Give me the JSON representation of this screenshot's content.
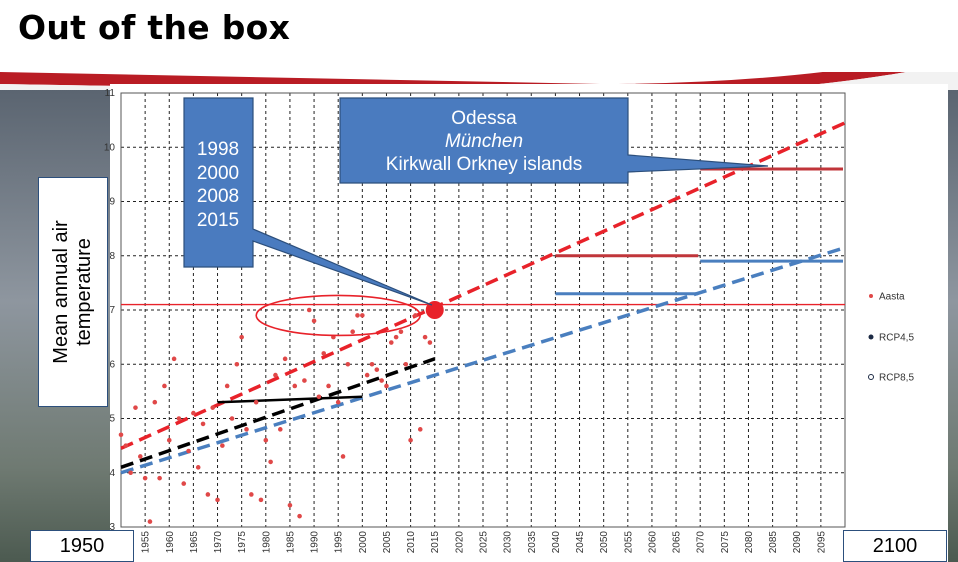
{
  "page": {
    "title": "Out of the box"
  },
  "ylabel": "Mean annual air temperature",
  "year_start_box": "1950",
  "year_end_box": "2100",
  "callout_years": {
    "lines": [
      "1998",
      "2000",
      "2008",
      "2015"
    ]
  },
  "callout_cities": {
    "lines": [
      "Odessa",
      "München",
      "Kirkwall Orkney islands"
    ]
  },
  "colors": {
    "observed": "#e04848",
    "rcp45": "#4a7fbf",
    "rcp85": "#e8222a",
    "trend_hist": "#000000",
    "callout": "#4a7bbf"
  },
  "chart_data": {
    "type": "scatter",
    "xlim": [
      1950,
      2100
    ],
    "ylim": [
      3,
      11
    ],
    "x_ticks": [
      1955,
      1960,
      1965,
      1970,
      1975,
      1980,
      1985,
      1990,
      1995,
      2000,
      2005,
      2010,
      2015,
      2020,
      2025,
      2030,
      2035,
      2040,
      2045,
      2050,
      2055,
      2060,
      2065,
      2070,
      2075,
      2080,
      2085,
      2090,
      2095
    ],
    "y_ticks": [
      3,
      4,
      5,
      6,
      7,
      8,
      9,
      10,
      11
    ],
    "grid": true,
    "legend_position": "right",
    "legend": [
      {
        "key": "observed",
        "label": "Aasta"
      },
      {
        "key": "rcp45",
        "label": "RCP4,5"
      },
      {
        "key": "rcp85",
        "label": "RCP8,5"
      }
    ],
    "observed_points": [
      [
        1950,
        4.7
      ],
      [
        1951,
        4.5
      ],
      [
        1952,
        4.0
      ],
      [
        1953,
        5.2
      ],
      [
        1954,
        4.3
      ],
      [
        1955,
        3.9
      ],
      [
        1956,
        3.1
      ],
      [
        1957,
        5.3
      ],
      [
        1958,
        3.9
      ],
      [
        1959,
        5.6
      ],
      [
        1960,
        4.6
      ],
      [
        1961,
        6.1
      ],
      [
        1962,
        5.0
      ],
      [
        1963,
        3.8
      ],
      [
        1964,
        4.4
      ],
      [
        1965,
        5.1
      ],
      [
        1966,
        4.1
      ],
      [
        1967,
        4.9
      ],
      [
        1968,
        3.6
      ],
      [
        1969,
        5.2
      ],
      [
        1970,
        3.5
      ],
      [
        1971,
        4.5
      ],
      [
        1972,
        5.6
      ],
      [
        1973,
        5.0
      ],
      [
        1974,
        6.0
      ],
      [
        1975,
        6.5
      ],
      [
        1976,
        4.8
      ],
      [
        1977,
        3.6
      ],
      [
        1978,
        5.3
      ],
      [
        1979,
        3.5
      ],
      [
        1980,
        4.6
      ],
      [
        1981,
        4.2
      ],
      [
        1982,
        5.8
      ],
      [
        1983,
        4.8
      ],
      [
        1984,
        6.1
      ],
      [
        1985,
        3.4
      ],
      [
        1986,
        5.6
      ],
      [
        1987,
        3.2
      ],
      [
        1988,
        5.7
      ],
      [
        1989,
        7.0
      ],
      [
        1990,
        6.8
      ],
      [
        1991,
        5.4
      ],
      [
        1992,
        6.2
      ],
      [
        1993,
        5.6
      ],
      [
        1994,
        6.5
      ],
      [
        1995,
        5.3
      ],
      [
        1996,
        4.3
      ],
      [
        1997,
        6.0
      ],
      [
        1998,
        6.6
      ],
      [
        1999,
        6.9
      ],
      [
        2000,
        6.9
      ],
      [
        2001,
        5.8
      ],
      [
        2002,
        6.0
      ],
      [
        2003,
        5.9
      ],
      [
        2004,
        5.7
      ],
      [
        2005,
        5.6
      ],
      [
        2006,
        6.4
      ],
      [
        2007,
        6.5
      ],
      [
        2008,
        6.6
      ],
      [
        2009,
        6.0
      ],
      [
        2010,
        4.6
      ],
      [
        2011,
        6.9
      ],
      [
        2012,
        4.8
      ],
      [
        2013,
        6.5
      ],
      [
        2014,
        6.4
      ],
      [
        2015,
        7.0
      ]
    ],
    "highlight_point": [
      2015,
      7.0
    ],
    "reference_level": 7.1,
    "trend_hist_solid": [
      [
        1970,
        5.3
      ],
      [
        2000,
        5.4
      ]
    ],
    "trend_hist_dashed": [
      [
        1950,
        4.1
      ],
      [
        2015,
        6.1
      ]
    ],
    "rcp45_line": [
      [
        1950,
        4.0
      ],
      [
        2100,
        8.15
      ]
    ],
    "rcp85_line": [
      [
        1950,
        4.45
      ],
      [
        2100,
        10.45
      ]
    ],
    "rcp45_levels": [
      {
        "x": [
          2040,
          2070
        ],
        "y": 7.3
      },
      {
        "x": [
          2070,
          2100
        ],
        "y": 7.9
      }
    ],
    "rcp85_levels": [
      {
        "x": [
          2040,
          2070
        ],
        "y": 8.0
      },
      {
        "x": [
          2070,
          2100
        ],
        "y": 9.6
      }
    ]
  }
}
